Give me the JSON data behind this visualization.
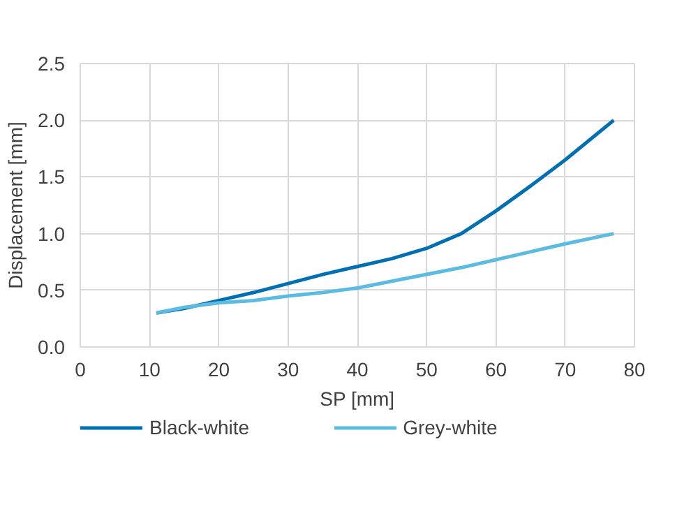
{
  "chart_data": {
    "type": "line",
    "xlabel": "SP [mm]",
    "ylabel": "Displacement [mm]",
    "xlim": [
      0,
      80
    ],
    "xticks": [
      0,
      10,
      20,
      30,
      40,
      50,
      60,
      70,
      80
    ],
    "ylim": [
      0,
      2.5
    ],
    "yticks": [
      {
        "value": 0,
        "label": "0.0"
      },
      0.5,
      {
        "value": 1,
        "label": "1.0"
      },
      1.5,
      {
        "value": 2,
        "label": "2.0"
      },
      2.5
    ],
    "grid": true,
    "legend": "bottom",
    "line_style": "solid",
    "series": [
      {
        "name": "Black-white",
        "color": "#0070b0",
        "x": [
          11,
          15,
          20,
          25,
          30,
          35,
          40,
          45,
          50,
          55,
          60,
          65,
          70,
          77
        ],
        "values": [
          0.3,
          0.34,
          0.41,
          0.48,
          0.56,
          0.64,
          0.71,
          0.78,
          0.87,
          1.0,
          1.2,
          1.42,
          1.65,
          2.0
        ]
      },
      {
        "name": "Grey-white",
        "color": "#5bbbe0",
        "x": [
          11,
          15,
          20,
          25,
          30,
          35,
          40,
          45,
          50,
          55,
          60,
          65,
          70,
          77
        ],
        "values": [
          0.3,
          0.35,
          0.39,
          0.41,
          0.45,
          0.48,
          0.52,
          0.58,
          0.64,
          0.7,
          0.77,
          0.84,
          0.91,
          1.0
        ]
      }
    ]
  }
}
